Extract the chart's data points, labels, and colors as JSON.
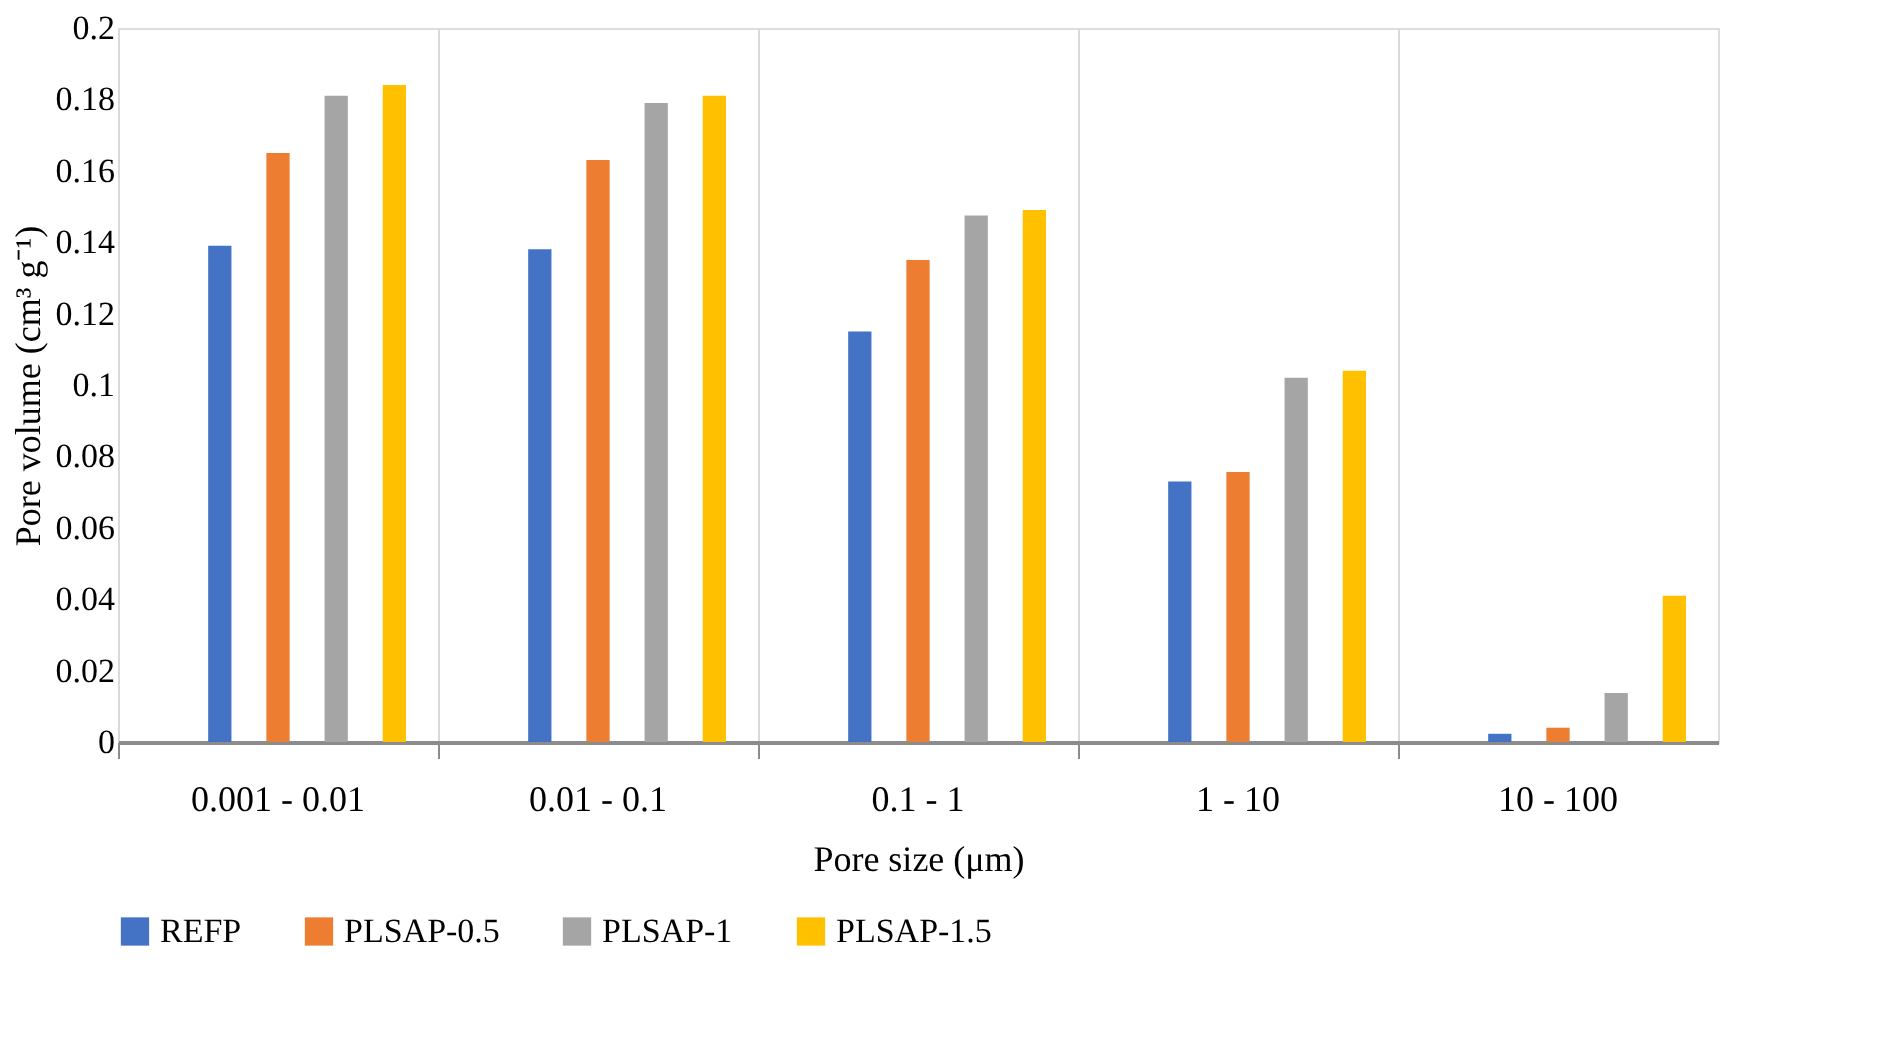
{
  "chart_data": {
    "type": "bar",
    "categories": [
      "0.001 - 0.01",
      "0.01 - 0.1",
      "0.1 - 1",
      "1 - 10",
      "10 - 100"
    ],
    "series": [
      {
        "name": "REFP",
        "color": "#4472c4",
        "values": [
          0.139,
          0.138,
          0.115,
          0.073,
          0.0023
        ]
      },
      {
        "name": "PLSAP-0.5",
        "color": "#ed7d31",
        "values": [
          0.165,
          0.163,
          0.135,
          0.0756,
          0.004
        ]
      },
      {
        "name": "PLSAP-1",
        "color": "#a5a5a5",
        "values": [
          0.181,
          0.179,
          0.1475,
          0.102,
          0.0137
        ]
      },
      {
        "name": "PLSAP-1.5",
        "color": "#ffc000",
        "values": [
          0.184,
          0.181,
          0.149,
          0.104,
          0.041
        ]
      }
    ],
    "xlabel": "Pore size (μm)",
    "ylabel": "Pore volume (cm³ g⁻¹)",
    "ylim": [
      0,
      0.2
    ],
    "yticks": [
      0,
      0.02,
      0.04,
      0.06,
      0.08,
      0.1,
      0.12,
      0.14,
      0.16,
      0.18,
      0.2
    ],
    "grid": "x",
    "legend": "bottom"
  }
}
